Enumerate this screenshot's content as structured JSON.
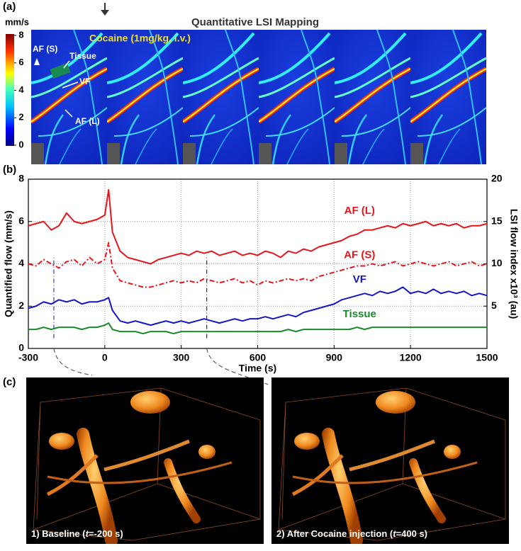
{
  "panel_labels": [
    "(a)",
    "(b)",
    "(c)"
  ],
  "panel_a": {
    "title": "Quantitative LSI Mapping",
    "colorbar": {
      "label": "mm/s",
      "ticks": [
        0,
        2,
        4,
        6,
        8
      ]
    },
    "annotations": [
      "Cocaine (1mg/kg,  i.v.)",
      "AF (S)",
      "Tissue",
      "VF",
      "AF (L)"
    ]
  },
  "chart_data": {
    "type": "line",
    "xlabel": "Time (s)",
    "ylabel": "Quantified flow (mm/s)",
    "y2label": "LSI flow index x10³ (au)",
    "xlim": [
      -300,
      1500
    ],
    "xticks": [
      -300,
      0,
      300,
      600,
      900,
      1200,
      1500
    ],
    "ylim": [
      0,
      8
    ],
    "yticks": [
      0,
      2,
      4,
      6,
      8
    ],
    "y2lim": [
      0,
      20
    ],
    "y2ticks": [
      5,
      10,
      15,
      20
    ],
    "grid": true,
    "markers": [
      {
        "x": -200,
        "color": "#3a3aa8"
      },
      {
        "x": 400,
        "color": "#333333"
      }
    ],
    "x": [
      -300,
      -270,
      -240,
      -210,
      -180,
      -150,
      -120,
      -90,
      -60,
      -30,
      0,
      15,
      30,
      60,
      90,
      120,
      150,
      180,
      210,
      240,
      270,
      300,
      330,
      360,
      390,
      420,
      450,
      480,
      510,
      540,
      570,
      600,
      630,
      660,
      690,
      720,
      750,
      780,
      810,
      840,
      870,
      900,
      930,
      960,
      990,
      1020,
      1050,
      1080,
      1110,
      1140,
      1170,
      1200,
      1230,
      1260,
      1290,
      1320,
      1350,
      1380,
      1410,
      1440,
      1470,
      1500
    ],
    "series": [
      {
        "name": "AF (L)",
        "color": "#e8141a",
        "line_style": "solid",
        "values": [
          5.8,
          5.9,
          6.0,
          5.6,
          5.8,
          6.4,
          6.0,
          5.9,
          6.0,
          6.1,
          6.3,
          7.5,
          5.5,
          4.6,
          4.3,
          4.2,
          4.1,
          4.0,
          4.2,
          4.3,
          4.4,
          4.5,
          4.4,
          4.6,
          4.5,
          4.6,
          4.4,
          4.5,
          4.6,
          4.4,
          4.5,
          4.4,
          4.6,
          4.5,
          4.3,
          4.6,
          4.5,
          4.7,
          4.6,
          4.8,
          4.9,
          5.0,
          5.1,
          5.3,
          5.4,
          5.6,
          5.6,
          5.7,
          5.8,
          5.7,
          5.9,
          5.8,
          5.9,
          6.0,
          5.8,
          5.9,
          5.8,
          5.9,
          5.7,
          5.8,
          5.8,
          5.9
        ]
      },
      {
        "name": "AF (S)",
        "color": "#e8141a",
        "line_style": "dash-dot",
        "values": [
          4.0,
          3.9,
          4.2,
          4.0,
          3.8,
          4.1,
          4.2,
          3.9,
          4.3,
          4.0,
          4.2,
          5.0,
          3.8,
          3.2,
          3.1,
          3.0,
          2.9,
          2.9,
          3.0,
          3.1,
          3.2,
          3.1,
          3.2,
          3.1,
          3.3,
          3.2,
          3.1,
          3.2,
          3.3,
          3.1,
          3.2,
          3.0,
          3.2,
          3.1,
          3.2,
          3.3,
          3.2,
          3.3,
          3.2,
          3.4,
          3.5,
          3.6,
          3.7,
          3.8,
          3.9,
          3.9,
          4.0,
          3.9,
          4.0,
          4.1,
          3.9,
          4.0,
          4.1,
          4.0,
          3.9,
          4.0,
          4.1,
          3.9,
          4.0,
          4.1,
          3.9,
          4.0
        ]
      },
      {
        "name": "VF",
        "color": "#1515c8",
        "line_style": "solid",
        "values": [
          1.9,
          2.0,
          2.2,
          2.1,
          2.3,
          2.2,
          2.3,
          2.1,
          2.2,
          2.2,
          2.3,
          2.4,
          1.8,
          1.3,
          1.2,
          1.3,
          1.2,
          1.1,
          1.2,
          1.3,
          1.2,
          1.3,
          1.2,
          1.3,
          1.4,
          1.3,
          1.2,
          1.3,
          1.4,
          1.3,
          1.4,
          1.4,
          1.5,
          1.4,
          1.5,
          1.6,
          1.5,
          1.7,
          1.8,
          1.9,
          2.0,
          2.1,
          2.3,
          2.4,
          2.5,
          2.6,
          2.5,
          2.7,
          2.6,
          2.7,
          2.9,
          2.6,
          2.7,
          2.6,
          2.8,
          2.6,
          2.7,
          2.6,
          2.7,
          2.5,
          2.6,
          2.5
        ]
      },
      {
        "name": "Tissue",
        "color": "#1a8a2a",
        "line_style": "solid",
        "values": [
          0.9,
          0.9,
          1.0,
          0.9,
          1.0,
          1.0,
          1.0,
          0.9,
          1.0,
          1.0,
          1.1,
          1.2,
          0.9,
          0.8,
          0.8,
          0.8,
          0.7,
          0.8,
          0.8,
          0.8,
          0.7,
          0.8,
          0.8,
          0.8,
          0.8,
          0.8,
          0.8,
          0.8,
          0.8,
          0.8,
          0.8,
          0.8,
          0.8,
          0.8,
          0.8,
          0.9,
          0.8,
          0.9,
          0.9,
          0.9,
          0.9,
          0.9,
          0.9,
          0.9,
          1.0,
          0.9,
          1.0,
          1.0,
          1.0,
          1.0,
          1.0,
          1.0,
          1.0,
          1.0,
          1.0,
          1.0,
          1.0,
          1.0,
          1.0,
          1.0,
          1.0,
          1.0
        ]
      }
    ]
  },
  "panel_c": {
    "captions": [
      [
        "1) Baseline (",
        "t",
        "=-200 s)"
      ],
      [
        "2) After Cocaine injection (",
        "t",
        "=400 s)"
      ]
    ]
  }
}
